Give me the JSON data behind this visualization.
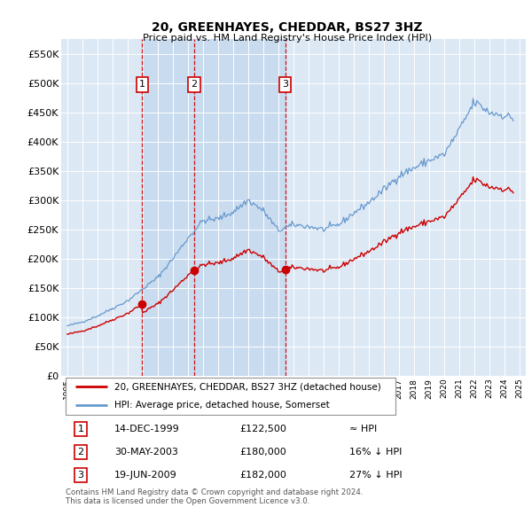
{
  "title": "20, GREENHAYES, CHEDDAR, BS27 3HZ",
  "subtitle": "Price paid vs. HM Land Registry's House Price Index (HPI)",
  "ylim": [
    0,
    575000
  ],
  "yticks": [
    0,
    50000,
    100000,
    150000,
    200000,
    250000,
    300000,
    350000,
    400000,
    450000,
    500000,
    550000
  ],
  "ytick_labels": [
    "£0",
    "£50K",
    "£100K",
    "£150K",
    "£200K",
    "£250K",
    "£300K",
    "£350K",
    "£400K",
    "£450K",
    "£500K",
    "£550K"
  ],
  "hpi_color": "#6699cc",
  "price_color": "#cc0000",
  "sale_color": "#cc0000",
  "background_color": "#dde8f5",
  "plot_bg": "#dde8f5",
  "shade_color": "#c5d8ee",
  "transactions": [
    {
      "date": 1999.96,
      "price": 122500,
      "label": "1"
    },
    {
      "date": 2003.41,
      "price": 180000,
      "label": "2"
    },
    {
      "date": 2009.46,
      "price": 182000,
      "label": "3"
    }
  ],
  "vline_color": "#cc0000",
  "legend_label_price": "20, GREENHAYES, CHEDDAR, BS27 3HZ (detached house)",
  "legend_label_hpi": "HPI: Average price, detached house, Somerset",
  "table_rows": [
    {
      "num": "1",
      "date": "14-DEC-1999",
      "price": "£122,500",
      "rel": "≈ HPI"
    },
    {
      "num": "2",
      "date": "30-MAY-2003",
      "price": "£180,000",
      "rel": "16% ↓ HPI"
    },
    {
      "num": "3",
      "date": "19-JUN-2009",
      "price": "£182,000",
      "rel": "27% ↓ HPI"
    }
  ],
  "footnote": "Contains HM Land Registry data © Crown copyright and database right 2024.\nThis data is licensed under the Open Government Licence v3.0."
}
